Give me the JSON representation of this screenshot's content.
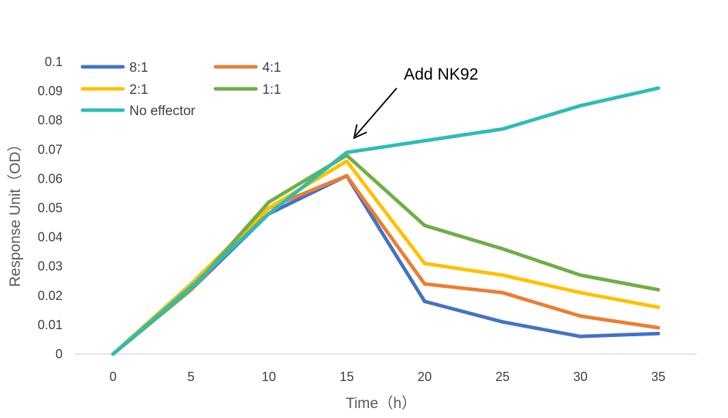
{
  "chart_data": {
    "type": "line",
    "title": "",
    "xlabel": "Time（h）",
    "ylabel": "Response Unit（OD）",
    "x": [
      0,
      5,
      10,
      15,
      20,
      25,
      30,
      35
    ],
    "x_tick_labels": [
      "0",
      "5",
      "10",
      "15",
      "20",
      "25",
      "30",
      "35"
    ],
    "y_tick_labels": [
      "0",
      "0.01",
      "0.02",
      "0.03",
      "0.04",
      "0.05",
      "0.06",
      "0.07",
      "0.08",
      "0.09",
      "0.1"
    ],
    "ylim": [
      0,
      0.1
    ],
    "grid": false,
    "legend_position": "top-left",
    "series": [
      {
        "name": "8:1",
        "color": "#4472C4",
        "values": [
          0,
          0.022,
          0.048,
          0.061,
          0.018,
          0.011,
          0.006,
          0.007
        ]
      },
      {
        "name": "4:1",
        "color": "#ED7D31",
        "values": [
          0,
          0.022,
          0.05,
          0.061,
          0.024,
          0.021,
          0.013,
          0.009
        ]
      },
      {
        "name": "2:1",
        "color": "#FFC000",
        "values": [
          0,
          0.024,
          0.05,
          0.066,
          0.031,
          0.027,
          0.021,
          0.016
        ]
      },
      {
        "name": "1:1",
        "color": "#70AD47",
        "values": [
          0,
          0.022,
          0.052,
          0.068,
          0.044,
          0.036,
          0.027,
          0.022
        ]
      },
      {
        "name": "No effector",
        "color": "#2EBDB5",
        "values": [
          0,
          0.023,
          0.048,
          0.069,
          0.073,
          0.077,
          0.085,
          0.091
        ]
      }
    ],
    "annotation": {
      "text": "Add NK92",
      "x": 15,
      "y": 0.069
    }
  }
}
